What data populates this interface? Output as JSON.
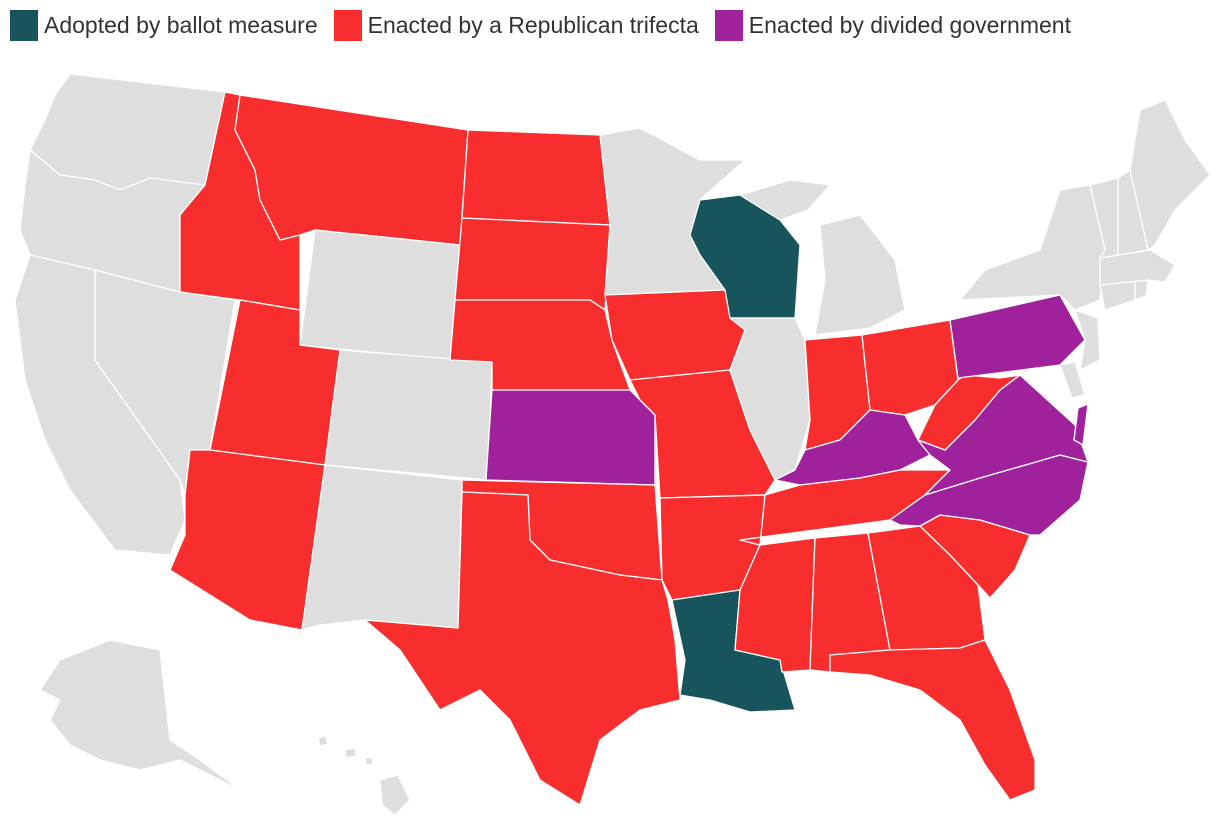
{
  "legend": {
    "items": [
      {
        "label": "Adopted by ballot measure",
        "color": "#17545c",
        "key": "ballot"
      },
      {
        "label": "Enacted by a Republican trifecta",
        "color": "#f82e2e",
        "key": "gop"
      },
      {
        "label": "Enacted by divided government",
        "color": "#a0219c",
        "key": "divided"
      }
    ]
  },
  "colors": {
    "none": "#dedede",
    "ballot": "#17545c",
    "gop": "#f82e2e",
    "divided": "#a0219c",
    "border": "#ffffff"
  },
  "states": [
    {
      "name": "Washington",
      "status": "none"
    },
    {
      "name": "Oregon",
      "status": "none"
    },
    {
      "name": "California",
      "status": "none"
    },
    {
      "name": "Nevada",
      "status": "none"
    },
    {
      "name": "Idaho",
      "status": "gop"
    },
    {
      "name": "Montana",
      "status": "gop"
    },
    {
      "name": "Wyoming",
      "status": "none"
    },
    {
      "name": "Utah",
      "status": "gop"
    },
    {
      "name": "Arizona",
      "status": "gop"
    },
    {
      "name": "Colorado",
      "status": "none"
    },
    {
      "name": "New Mexico",
      "status": "none"
    },
    {
      "name": "North Dakota",
      "status": "gop"
    },
    {
      "name": "South Dakota",
      "status": "gop"
    },
    {
      "name": "Nebraska",
      "status": "gop"
    },
    {
      "name": "Kansas",
      "status": "divided"
    },
    {
      "name": "Oklahoma",
      "status": "gop"
    },
    {
      "name": "Texas",
      "status": "gop"
    },
    {
      "name": "Minnesota",
      "status": "none"
    },
    {
      "name": "Iowa",
      "status": "gop"
    },
    {
      "name": "Missouri",
      "status": "gop"
    },
    {
      "name": "Arkansas",
      "status": "gop"
    },
    {
      "name": "Louisiana",
      "status": "ballot"
    },
    {
      "name": "Wisconsin",
      "status": "ballot"
    },
    {
      "name": "Illinois",
      "status": "none"
    },
    {
      "name": "Michigan",
      "status": "none"
    },
    {
      "name": "Indiana",
      "status": "gop"
    },
    {
      "name": "Ohio",
      "status": "gop"
    },
    {
      "name": "Kentucky",
      "status": "divided"
    },
    {
      "name": "Tennessee",
      "status": "gop"
    },
    {
      "name": "Mississippi",
      "status": "gop"
    },
    {
      "name": "Alabama",
      "status": "gop"
    },
    {
      "name": "Georgia",
      "status": "gop"
    },
    {
      "name": "Florida",
      "status": "gop"
    },
    {
      "name": "South Carolina",
      "status": "gop"
    },
    {
      "name": "North Carolina",
      "status": "divided"
    },
    {
      "name": "Virginia",
      "status": "divided"
    },
    {
      "name": "West Virginia",
      "status": "gop"
    },
    {
      "name": "Pennsylvania",
      "status": "divided"
    },
    {
      "name": "Maryland",
      "status": "divided"
    },
    {
      "name": "Delaware",
      "status": "none"
    },
    {
      "name": "New Jersey",
      "status": "none"
    },
    {
      "name": "New York",
      "status": "none"
    },
    {
      "name": "Connecticut",
      "status": "none"
    },
    {
      "name": "Rhode Island",
      "status": "none"
    },
    {
      "name": "Massachusetts",
      "status": "none"
    },
    {
      "name": "Vermont",
      "status": "none"
    },
    {
      "name": "New Hampshire",
      "status": "none"
    },
    {
      "name": "Maine",
      "status": "none"
    },
    {
      "name": "Alaska",
      "status": "none"
    },
    {
      "name": "Hawaii",
      "status": "none"
    }
  ]
}
